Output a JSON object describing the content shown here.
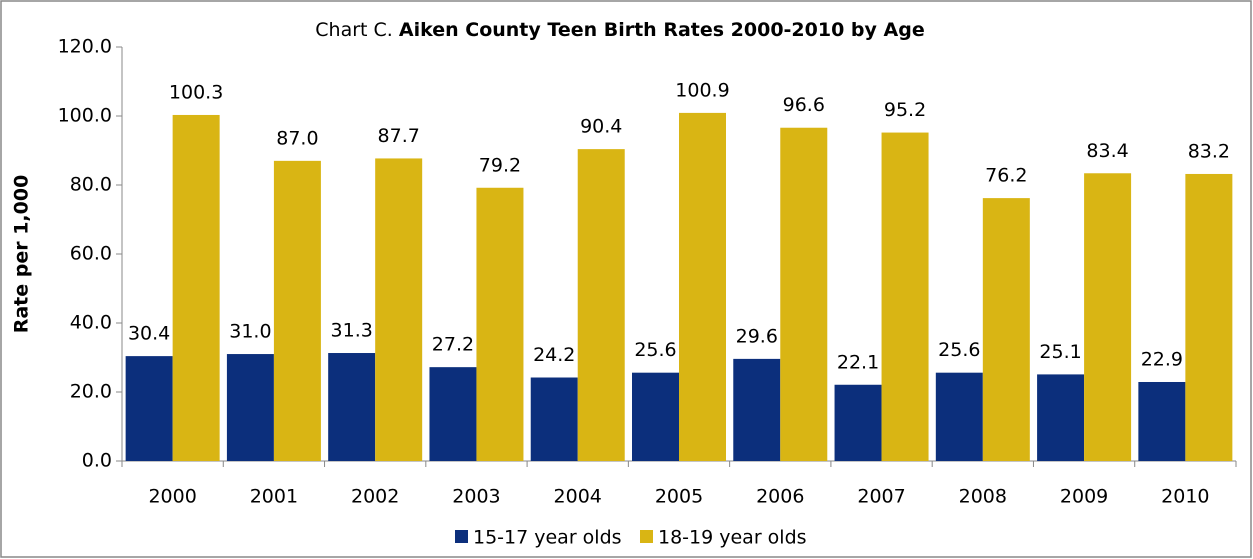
{
  "chart_data": {
    "type": "bar",
    "title": [
      "Chart C.",
      "Aiken County Teen Birth Rates 2000-2010 by Age"
    ],
    "y_label": "Rate per 1,000",
    "categories": [
      "2000",
      "2001",
      "2002",
      "2003",
      "2004",
      "2005",
      "2006",
      "2007",
      "2008",
      "2009",
      "2010"
    ],
    "series": [
      {
        "name": "15-17 year olds",
        "color": "#0c2f7c",
        "values": [
          30.4,
          31.0,
          31.3,
          27.2,
          24.2,
          25.6,
          29.6,
          22.1,
          25.6,
          25.1,
          22.9
        ],
        "value_labels": [
          "30.4",
          "31.0",
          "31.3",
          "27.2",
          "24.2",
          "25.6",
          "29.6",
          "22.1",
          "25.6",
          "25.1",
          "22.9"
        ]
      },
      {
        "name": "18-19 year olds",
        "color": "#d9b514",
        "values": [
          100.3,
          87.0,
          87.7,
          79.2,
          90.4,
          100.9,
          96.6,
          95.2,
          76.2,
          83.4,
          83.2
        ],
        "value_labels": [
          "100.3",
          "87.0",
          "87.7",
          "79.2",
          "90.4",
          "100.9",
          "96.6",
          "95.2",
          "76.2",
          "83.4",
          "83.2"
        ]
      }
    ],
    "ylim": [
      0,
      120
    ],
    "yticks": [
      {
        "value": 0,
        "label": "0.0"
      },
      {
        "value": 20,
        "label": "20.0"
      },
      {
        "value": 40,
        "label": "40.0"
      },
      {
        "value": 60,
        "label": "60.0"
      },
      {
        "value": 80,
        "label": "80.0"
      },
      {
        "value": 100,
        "label": "100.0"
      },
      {
        "value": 120,
        "label": "120.0"
      }
    ],
    "legend": "bottom"
  }
}
